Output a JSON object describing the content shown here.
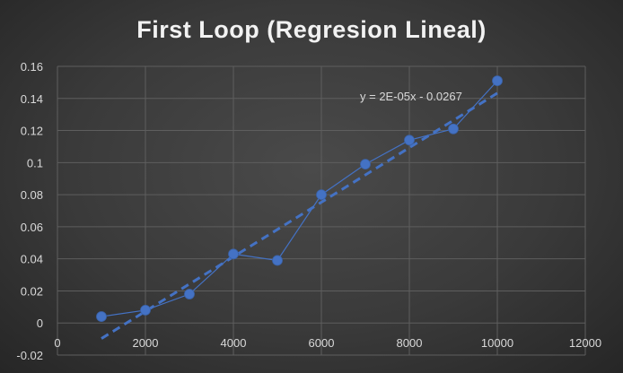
{
  "chart_data": {
    "type": "scatter",
    "title": "First Loop (Regresion Lineal)",
    "xlabel": "",
    "ylabel": "",
    "xlim": [
      0,
      12000
    ],
    "ylim": [
      -0.02,
      0.16
    ],
    "x_ticks": [
      0,
      2000,
      4000,
      6000,
      8000,
      10000,
      12000
    ],
    "x_tick_labels": [
      "0",
      "2000",
      "4000",
      "6000",
      "8000",
      "10000",
      "12000"
    ],
    "y_ticks": [
      -0.02,
      0,
      0.02,
      0.04,
      0.06,
      0.08,
      0.1,
      0.12,
      0.14,
      0.16
    ],
    "y_tick_labels": [
      "-0.02",
      "0",
      "0.02",
      "0.04",
      "0.06",
      "0.08",
      "0.1",
      "0.12",
      "0.14",
      "0.16"
    ],
    "grid": true,
    "series": [
      {
        "x": [
          1000,
          2000,
          3000,
          4000,
          5000,
          6000,
          7000,
          8000,
          9000,
          10000
        ],
        "y": [
          0.004,
          0.008,
          0.018,
          0.043,
          0.039,
          0.08,
          0.099,
          0.114,
          0.121,
          0.151
        ],
        "color": "#4472c4",
        "markers": true,
        "connected": true
      }
    ],
    "trendline": {
      "type": "linear",
      "equation_label": "y = 2E-05x - 0.0267",
      "x_range": [
        1000,
        10000
      ],
      "y_range": [
        -0.0097,
        0.1433
      ],
      "color": "#4472c4",
      "dashed": true
    }
  }
}
